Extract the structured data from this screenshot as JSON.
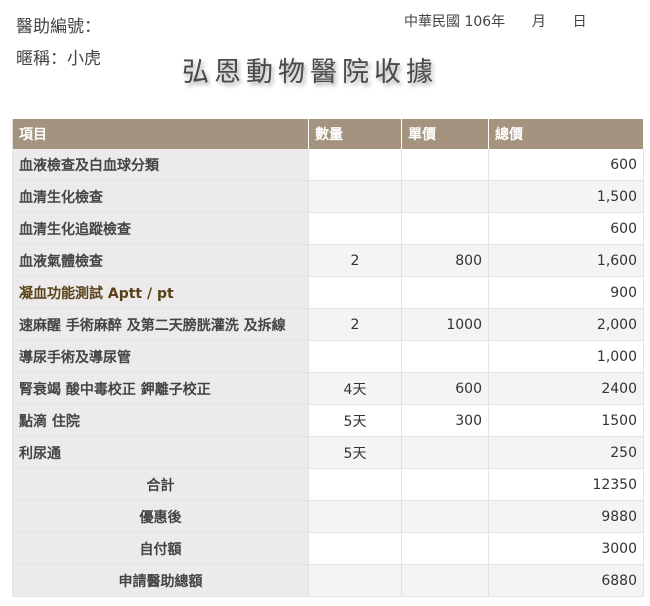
{
  "header": {
    "aid_number_label": "醫助編號：",
    "nickname_label": "暱稱：小虎",
    "date_label": "中華民國 106年      月      日",
    "title": "弘恩動物醫院收據"
  },
  "table": {
    "columns": [
      "項目",
      "數量",
      "單價",
      "總價"
    ],
    "rows": [
      {
        "item": "血液檢查及白血球分類",
        "qty": "",
        "unit": "",
        "total": "600"
      },
      {
        "item": "血清生化檢查",
        "qty": "",
        "unit": "",
        "total": "1,500"
      },
      {
        "item": "血清生化追蹤檢查",
        "qty": "",
        "unit": "",
        "total": "600"
      },
      {
        "item": "血液氣體檢查",
        "qty": "2",
        "unit": "800",
        "total": "1,600"
      },
      {
        "item": "凝血功能測試 Aptt / pt",
        "qty": "",
        "unit": "",
        "total": "900"
      },
      {
        "item": "速麻醒 手術麻醉 及第二天膀胱灌洗 及拆線",
        "qty": "2",
        "unit": "1000",
        "total": "2,000"
      },
      {
        "item": "導尿手術及導尿管",
        "qty": "",
        "unit": "",
        "total": "1,000"
      },
      {
        "item": "腎衰竭 酸中毒校正 鉀離子校正",
        "qty": "4天",
        "unit": "600",
        "total": "2400"
      },
      {
        "item": "點滴 住院",
        "qty": "5天",
        "unit": "300",
        "total": "1500"
      },
      {
        "item": "利尿通",
        "qty": "5天",
        "unit": "",
        "total": "250"
      }
    ],
    "summary": [
      {
        "label": "合計",
        "total": "12350"
      },
      {
        "label": "優惠後",
        "total": "9880"
      },
      {
        "label": "自付額",
        "total": "3000"
      },
      {
        "label": "申請醫助總額",
        "total": "6880"
      }
    ]
  }
}
